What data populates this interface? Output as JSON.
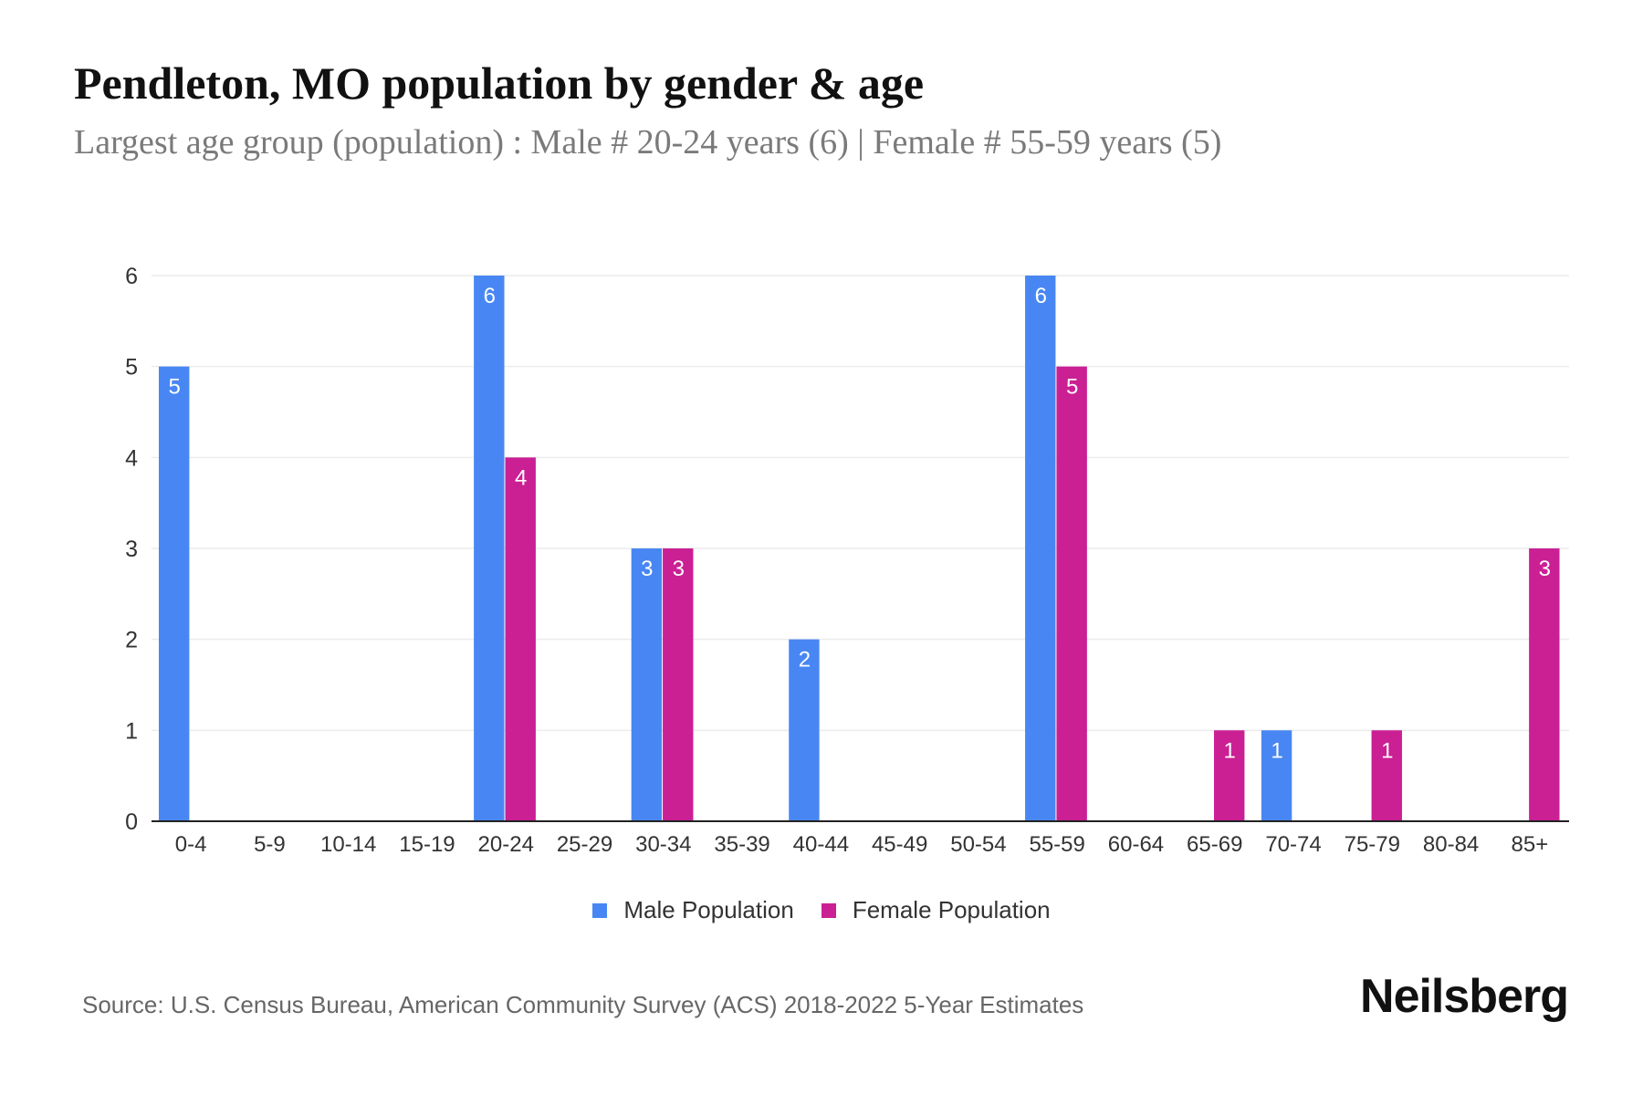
{
  "title": "Pendleton, MO population by gender & age",
  "subtitle": "Largest age group (population) : Male # 20-24 years (6) | Female # 55-59 years (5)",
  "source": "Source: U.S. Census Bureau, American Community Survey (ACS) 2018-2022 5-Year Estimates",
  "logo": "Neilsberg",
  "chart_data": {
    "type": "bar",
    "categories": [
      "0-4",
      "5-9",
      "10-14",
      "15-19",
      "20-24",
      "25-29",
      "30-34",
      "35-39",
      "40-44",
      "45-49",
      "50-54",
      "55-59",
      "60-64",
      "65-69",
      "70-74",
      "75-79",
      "80-84",
      "85+"
    ],
    "series": [
      {
        "name": "Male Population",
        "color": "#4887F3",
        "values": [
          5,
          0,
          0,
          0,
          6,
          0,
          3,
          0,
          2,
          0,
          0,
          6,
          0,
          0,
          1,
          0,
          0,
          0
        ]
      },
      {
        "name": "Female Population",
        "color": "#CB1F94",
        "values": [
          0,
          0,
          0,
          0,
          4,
          0,
          3,
          0,
          0,
          0,
          0,
          5,
          0,
          1,
          0,
          1,
          0,
          3
        ]
      }
    ],
    "ylim": [
      0,
      6
    ],
    "yticks": [
      0,
      1,
      2,
      3,
      4,
      5,
      6
    ],
    "grid": true,
    "legend": "bottom",
    "data_labels": true
  }
}
